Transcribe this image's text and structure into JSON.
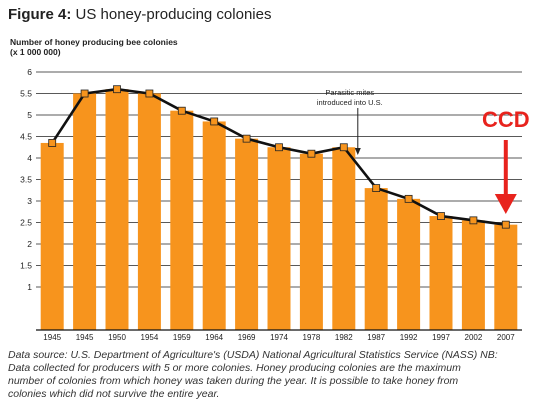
{
  "figure": {
    "number_label": "Figure 4:",
    "title": "US honey-producing colonies"
  },
  "chart_data": {
    "type": "bar",
    "title": "US honey-producing colonies",
    "ylabel_line1": "Number of honey producing bee colonies",
    "ylabel_line2": "(x 1 000 000)",
    "xlabel": "",
    "ylim": [
      0,
      6
    ],
    "yticks": [
      1,
      1.5,
      2,
      2.5,
      3,
      3.5,
      4,
      4.5,
      5,
      5.5,
      6
    ],
    "ytick_labels": [
      "1",
      "1.5",
      "2",
      "2.5",
      "3",
      "3.5",
      "4",
      "4.5",
      "5",
      "5.5",
      "6"
    ],
    "categories": [
      "1945",
      "1945",
      "1950",
      "1954",
      "1959",
      "1964",
      "1969",
      "1974",
      "1978",
      "1982",
      "1987",
      "1992",
      "1997",
      "2002",
      "2007"
    ],
    "values": [
      4.35,
      5.5,
      5.6,
      5.5,
      5.1,
      4.85,
      4.45,
      4.25,
      4.1,
      4.25,
      3.3,
      3.05,
      2.65,
      2.55,
      2.45
    ],
    "bar_color": "#f7941d",
    "line_color": "#111111",
    "marker_color": "#f7941d",
    "grid": true,
    "annotations": [
      {
        "id": "mites",
        "line1": "Parasitic mites",
        "line2": "introduced into U.S.",
        "category_index": 9
      },
      {
        "id": "ccd",
        "text": "CCD",
        "color": "#e8231d",
        "category_index": 14
      }
    ]
  },
  "footnote": {
    "line1": "Data source: U.S. Department of Agriculture's (USDA) National Agricultural Statistics Service (NASS) NB:",
    "line2": "Data collected for producers with 5 or more colonies. Honey producing colonies are the maximum",
    "line3": "number of colonies from which honey was taken during the year. It is possible to take honey from",
    "line4": "colonies which did not survive the entire year."
  }
}
